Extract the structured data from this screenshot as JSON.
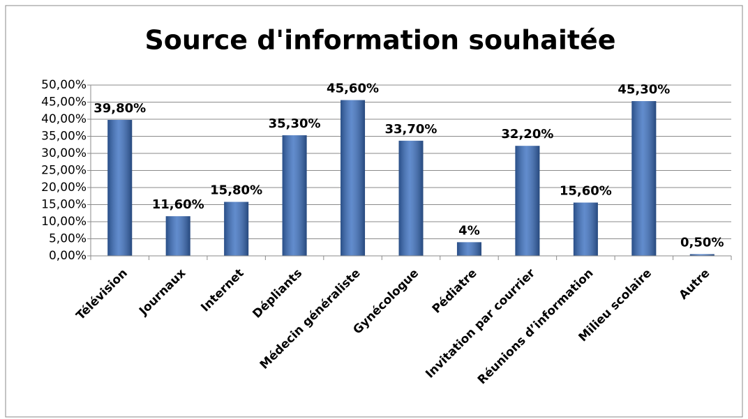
{
  "chart_data": {
    "type": "bar",
    "title": "Source d'information souhaitée",
    "categories": [
      "Télévision",
      "Journaux",
      "Internet",
      "Dépliants",
      "Médecin généraliste",
      "Gynécologue",
      "Pédiatre",
      "Invitation par courrier",
      "Réunions d’information",
      "Milieu scolaire",
      "Autre"
    ],
    "values": [
      39.8,
      11.6,
      15.8,
      35.3,
      45.6,
      33.7,
      4,
      32.2,
      15.6,
      45.3,
      0.5
    ],
    "value_labels": [
      "39,80%",
      "11,60%",
      "15,80%",
      "35,30%",
      "45,60%",
      "33,70%",
      "4%",
      "32,20%",
      "15,60%",
      "45,30%",
      "0,50%"
    ],
    "color": "#3a6fc0",
    "ylim": [
      0,
      50
    ],
    "yticks": [
      {
        "value": 0,
        "label": "0,00%"
      },
      {
        "value": 5,
        "label": "5,00%"
      },
      {
        "value": 10,
        "label": "10,00%"
      },
      {
        "value": 15,
        "label": "15,00%"
      },
      {
        "value": 20,
        "label": "20,00%"
      },
      {
        "value": 25,
        "label": "25,00%"
      },
      {
        "value": 30,
        "label": "30,00%"
      },
      {
        "value": 35,
        "label": "35,00%"
      },
      {
        "value": 40,
        "label": "40,00%"
      },
      {
        "value": 45,
        "label": "45,00%"
      },
      {
        "value": 50,
        "label": "50,00%"
      }
    ],
    "grid": true
  }
}
